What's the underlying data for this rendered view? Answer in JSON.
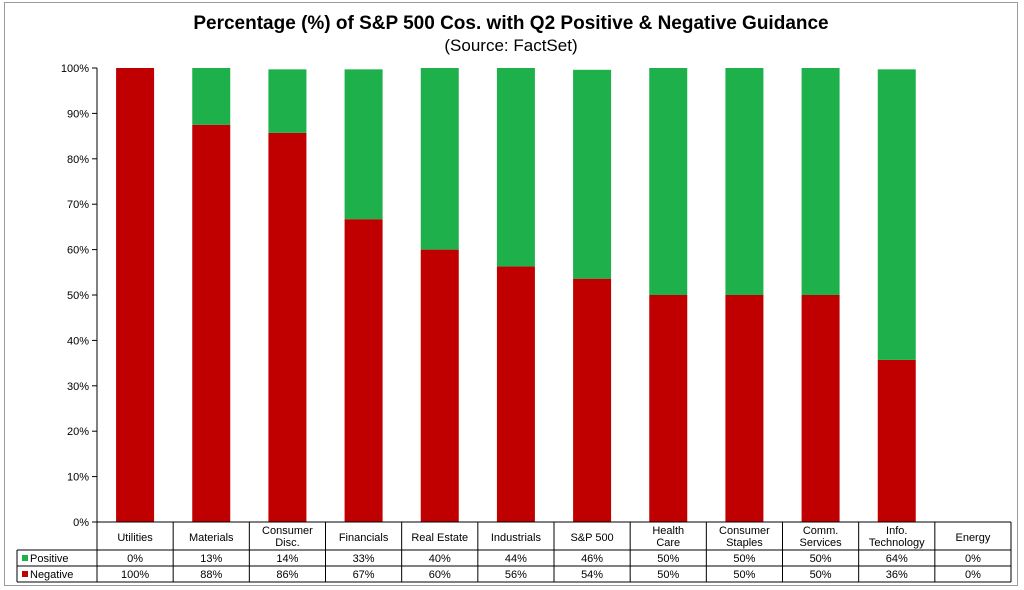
{
  "chart_data": {
    "type": "bar",
    "stacked": true,
    "title": "Percentage (%) of S&P 500 Cos. with Q2 Positive & Negative Guidance",
    "subtitle": "(Source: FactSet)",
    "ylim": [
      0,
      100
    ],
    "yticks": [
      "0%",
      "10%",
      "20%",
      "30%",
      "40%",
      "50%",
      "60%",
      "70%",
      "80%",
      "90%",
      "100%"
    ],
    "categories": [
      [
        "Utilities"
      ],
      [
        "Materials"
      ],
      [
        "Consumer",
        "Disc."
      ],
      [
        "Financials"
      ],
      [
        "Real Estate"
      ],
      [
        "Industrials"
      ],
      [
        "S&P 500"
      ],
      [
        "Health",
        "Care"
      ],
      [
        "Consumer",
        "Staples"
      ],
      [
        "Comm.",
        "Services"
      ],
      [
        "Info.",
        "Technology"
      ],
      [
        "Energy"
      ]
    ],
    "series": [
      {
        "name": "Positive",
        "color": "#1db04b",
        "values": [
          0,
          13,
          14,
          33,
          40,
          44,
          46,
          50,
          50,
          50,
          64,
          0
        ],
        "labels": [
          "0%",
          "13%",
          "14%",
          "33%",
          "40%",
          "44%",
          "46%",
          "50%",
          "50%",
          "50%",
          "64%",
          "0%"
        ]
      },
      {
        "name": "Negative",
        "color": "#c00000",
        "values": [
          100,
          87.5,
          85.7,
          66.7,
          60,
          56.3,
          53.6,
          50,
          50,
          50,
          35.7,
          0
        ],
        "labels": [
          "100%",
          "88%",
          "86%",
          "67%",
          "60%",
          "56%",
          "54%",
          "50%",
          "50%",
          "50%",
          "36%",
          "0%"
        ]
      }
    ],
    "grid": false,
    "legend": "data-table-left"
  }
}
